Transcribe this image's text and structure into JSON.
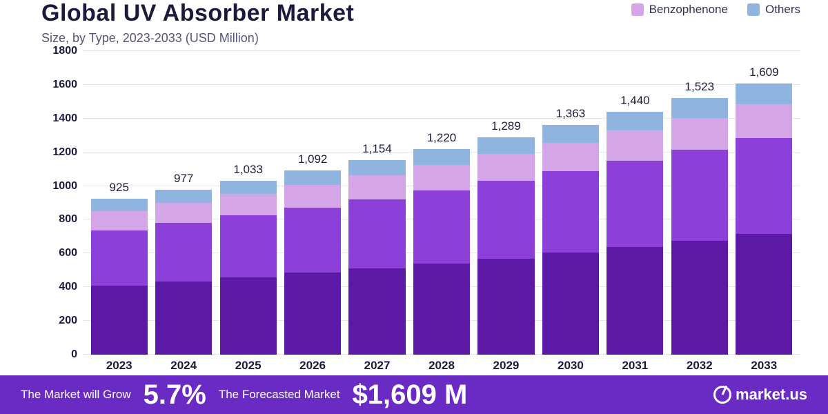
{
  "header": {
    "title": "Global UV Absorber Market",
    "subtitle": "Size, by Type, 2023-2033 (USD Million)"
  },
  "legend": [
    {
      "label": "Benzophenone",
      "color": "#d4a6e8"
    },
    {
      "label": "Others",
      "color": "#8fb4e0"
    }
  ],
  "chart": {
    "type": "stacked-bar",
    "ylim": [
      0,
      1800
    ],
    "ytick_step": 200,
    "grid_color": "#e5e5ef",
    "background_color": "#ffffff",
    "axis_font_color": "#1a1a3d",
    "axis_font_size": 16,
    "label_font_size": 17,
    "bar_width_pct": 8,
    "series": [
      {
        "name": "seg1",
        "color": "#5b19a6"
      },
      {
        "name": "seg2",
        "color": "#8c3fd9"
      },
      {
        "name": "Benzophenone",
        "color": "#d4a6e8"
      },
      {
        "name": "Others",
        "color": "#8fb4e0"
      }
    ],
    "categories": [
      "2023",
      "2024",
      "2025",
      "2026",
      "2027",
      "2028",
      "2029",
      "2030",
      "2031",
      "2032",
      "2033"
    ],
    "totals": [
      "925",
      "977",
      "1,033",
      "1,092",
      "1,154",
      "1,220",
      "1,289",
      "1,363",
      "1,440",
      "1,523",
      "1,609"
    ],
    "stacks": [
      [
        410,
        325,
        115,
        75
      ],
      [
        435,
        345,
        120,
        77
      ],
      [
        460,
        365,
        128,
        80
      ],
      [
        485,
        385,
        137,
        85
      ],
      [
        510,
        410,
        144,
        90
      ],
      [
        540,
        435,
        150,
        95
      ],
      [
        570,
        460,
        159,
        100
      ],
      [
        605,
        485,
        168,
        105
      ],
      [
        640,
        510,
        180,
        110
      ],
      [
        675,
        540,
        190,
        118
      ],
      [
        715,
        570,
        199,
        125
      ]
    ]
  },
  "footer": {
    "bg_color": "#6a2bc5",
    "text1": "The Market will Grow",
    "big1": "5.7%",
    "text2": "The Forecasted Market",
    "big2": "$1,609 M",
    "brand": "market.us"
  }
}
